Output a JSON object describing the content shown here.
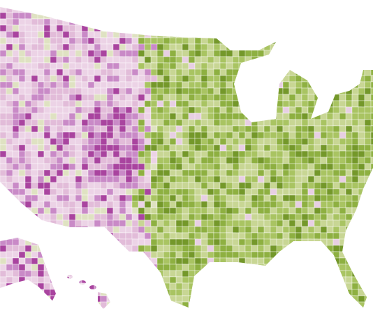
{
  "map": {
    "west_colors": [
      "#ecd3e6",
      "#e2bcd9",
      "#c98ac7",
      "#a9449f",
      "#dfe2c2"
    ],
    "east_colors": [
      "#c8d694",
      "#a9c462",
      "#8eb041",
      "#74982a",
      "#e7cfe3"
    ]
  }
}
